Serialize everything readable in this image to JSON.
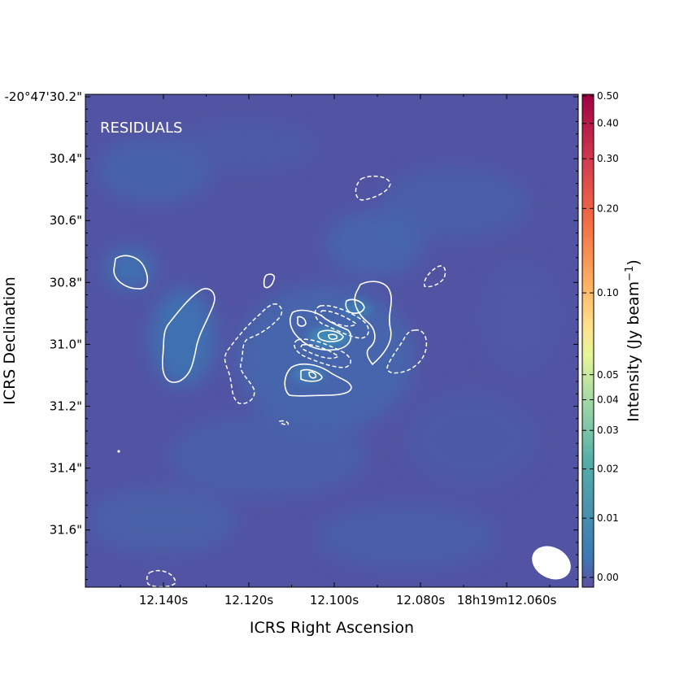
{
  "chart_data": {
    "type": "heatmap",
    "panel_label": "RESIDUALS",
    "xlabel": "ICRS Right Ascension",
    "ylabel": "ICRS Declination",
    "colorbar_label": "Intensity (Jy beam",
    "colorbar_label_sup": "−1",
    "colorbar_label_close": ")",
    "colormap": "Spectral_r",
    "x_ticks": [
      "12.140s",
      "12.120s",
      "12.100s",
      "12.080s",
      "18h19m12.060s"
    ],
    "y_ticks": [
      "-20°47'30.2\"",
      "30.4\"",
      "30.6\"",
      "30.8\"",
      "31.0\"",
      "31.2\"",
      "31.4\"",
      "31.6\""
    ],
    "colorbar_ticks": [
      "0.50",
      "0.40",
      "0.30",
      "0.20",
      "0.10",
      "0.05",
      "0.04",
      "0.03",
      "0.02",
      "0.01",
      "0.00"
    ],
    "colorbar_values": [
      0.5,
      0.4,
      0.3,
      0.2,
      0.1,
      0.05,
      0.04,
      0.03,
      0.02,
      0.01,
      0.0
    ],
    "colors": {
      "background_field": "#5254a3",
      "contour": "#ffffff",
      "beam": "#ffffff"
    }
  }
}
